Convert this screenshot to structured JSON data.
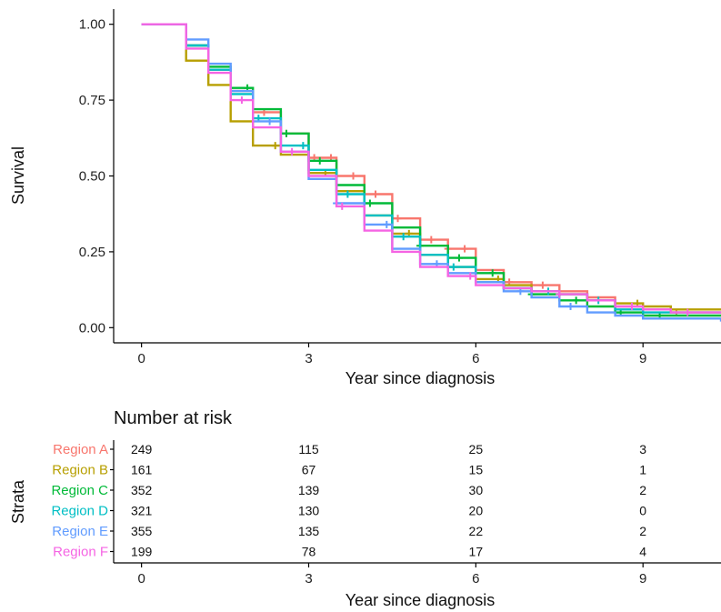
{
  "chart_data": [
    {
      "type": "line",
      "subtype": "kaplan-meier-step",
      "xlabel": "Year since diagnosis",
      "ylabel": "Survival",
      "xlim": [
        -0.5,
        10.4
      ],
      "ylim": [
        -0.05,
        1.05
      ],
      "x_ticks": [
        0,
        3,
        6,
        9
      ],
      "x_tick_labels": [
        "0",
        "3",
        "6",
        "9"
      ],
      "y_ticks": [
        0.0,
        0.25,
        0.5,
        0.75,
        1.0
      ],
      "y_tick_labels": [
        "0.00",
        "0.25",
        "0.50",
        "0.75",
        "1.00"
      ],
      "grid": false,
      "legend": "none",
      "series": [
        {
          "name": "Region A",
          "color": "#F8766D",
          "points": [
            [
              0,
              1
            ],
            [
              0.55,
              1
            ],
            [
              0.8,
              0.93
            ],
            [
              1.2,
              0.85
            ],
            [
              1.6,
              0.78
            ],
            [
              2,
              0.71
            ],
            [
              2.5,
              0.64
            ],
            [
              3,
              0.56
            ],
            [
              3.5,
              0.5
            ],
            [
              4,
              0.44
            ],
            [
              4.5,
              0.36
            ],
            [
              5,
              0.29
            ],
            [
              5.5,
              0.26
            ],
            [
              6,
              0.19
            ],
            [
              6.5,
              0.15
            ],
            [
              7,
              0.14
            ],
            [
              7.5,
              0.12
            ],
            [
              8,
              0.1
            ],
            [
              8.5,
              0.07
            ],
            [
              9,
              0.06
            ],
            [
              9.5,
              0.05
            ],
            [
              10.4,
              0.05
            ]
          ],
          "censor_x": [
            2.2,
            2.6,
            3.1,
            3.4,
            3.8,
            4.2,
            4.6,
            5.2,
            5.5,
            5.8,
            6.6,
            7.2,
            8.5,
            9.6
          ]
        },
        {
          "name": "Region B",
          "color": "#B79F00",
          "points": [
            [
              0,
              1
            ],
            [
              0.55,
              1
            ],
            [
              0.8,
              0.88
            ],
            [
              1.2,
              0.8
            ],
            [
              1.6,
              0.68
            ],
            [
              2,
              0.6
            ],
            [
              2.5,
              0.57
            ],
            [
              3,
              0.51
            ],
            [
              3.5,
              0.45
            ],
            [
              4,
              0.37
            ],
            [
              4.5,
              0.31
            ],
            [
              5,
              0.24
            ],
            [
              5.5,
              0.2
            ],
            [
              6,
              0.16
            ],
            [
              6.5,
              0.14
            ],
            [
              7,
              0.12
            ],
            [
              7.5,
              0.11
            ],
            [
              8,
              0.09
            ],
            [
              8.5,
              0.08
            ],
            [
              9,
              0.07
            ],
            [
              9.5,
              0.06
            ],
            [
              10.4,
              0.06
            ]
          ],
          "censor_x": [
            2.4,
            3.3,
            4.8,
            6.4,
            8.9
          ]
        },
        {
          "name": "Region C",
          "color": "#00BA38",
          "points": [
            [
              0,
              1
            ],
            [
              0.55,
              1
            ],
            [
              0.8,
              0.93
            ],
            [
              1.2,
              0.86
            ],
            [
              1.6,
              0.79
            ],
            [
              2,
              0.72
            ],
            [
              2.5,
              0.64
            ],
            [
              3,
              0.55
            ],
            [
              3.5,
              0.47
            ],
            [
              4,
              0.41
            ],
            [
              4.5,
              0.33
            ],
            [
              5,
              0.27
            ],
            [
              5.5,
              0.23
            ],
            [
              6,
              0.18
            ],
            [
              6.5,
              0.13
            ],
            [
              7,
              0.11
            ],
            [
              7.5,
              0.09
            ],
            [
              8,
              0.07
            ],
            [
              8.5,
              0.05
            ],
            [
              9,
              0.04
            ],
            [
              9.5,
              0.04
            ],
            [
              10.4,
              0.04
            ]
          ],
          "censor_x": [
            1.9,
            2.6,
            3.2,
            4.1,
            5.0,
            5.7,
            6.3,
            7.0,
            7.8,
            8.6,
            9.3
          ]
        },
        {
          "name": "Region D",
          "color": "#00BFC4",
          "points": [
            [
              0,
              1
            ],
            [
              0.55,
              1
            ],
            [
              0.8,
              0.93
            ],
            [
              1.2,
              0.85
            ],
            [
              1.6,
              0.77
            ],
            [
              2,
              0.69
            ],
            [
              2.5,
              0.6
            ],
            [
              3,
              0.52
            ],
            [
              3.5,
              0.44
            ],
            [
              4,
              0.37
            ],
            [
              4.5,
              0.3
            ],
            [
              5,
              0.24
            ],
            [
              5.5,
              0.2
            ],
            [
              6,
              0.15
            ],
            [
              6.5,
              0.13
            ],
            [
              7,
              0.12
            ],
            [
              7.5,
              0.11
            ],
            [
              8,
              0.09
            ],
            [
              8.5,
              0.06
            ],
            [
              9,
              0.05
            ],
            [
              9.5,
              0.05
            ],
            [
              10.4,
              0.05
            ]
          ],
          "censor_x": [
            2.1,
            2.9,
            3.7,
            4.7,
            5.6,
            7.3,
            8.2
          ]
        },
        {
          "name": "Region E",
          "color": "#619CFF",
          "points": [
            [
              0,
              1
            ],
            [
              0.55,
              1
            ],
            [
              0.8,
              0.95
            ],
            [
              1.2,
              0.87
            ],
            [
              1.6,
              0.78
            ],
            [
              2,
              0.68
            ],
            [
              2.5,
              0.58
            ],
            [
              3,
              0.49
            ],
            [
              3.5,
              0.41
            ],
            [
              4,
              0.34
            ],
            [
              4.5,
              0.26
            ],
            [
              5,
              0.21
            ],
            [
              5.5,
              0.18
            ],
            [
              6,
              0.15
            ],
            [
              6.5,
              0.12
            ],
            [
              7,
              0.1
            ],
            [
              7.5,
              0.07
            ],
            [
              8,
              0.05
            ],
            [
              8.5,
              0.04
            ],
            [
              9,
              0.03
            ],
            [
              9.5,
              0.03
            ],
            [
              10.4,
              0.02
            ]
          ],
          "censor_x": [
            2.3,
            3.5,
            4.4,
            5.3,
            6.8,
            7.7
          ]
        },
        {
          "name": "Region F",
          "color": "#F564E3",
          "points": [
            [
              0,
              1
            ],
            [
              0.55,
              1
            ],
            [
              0.8,
              0.92
            ],
            [
              1.2,
              0.84
            ],
            [
              1.6,
              0.75
            ],
            [
              2,
              0.66
            ],
            [
              2.5,
              0.58
            ],
            [
              3,
              0.5
            ],
            [
              3.5,
              0.4
            ],
            [
              4,
              0.32
            ],
            [
              4.5,
              0.25
            ],
            [
              5,
              0.2
            ],
            [
              5.5,
              0.17
            ],
            [
              6,
              0.14
            ],
            [
              6.5,
              0.13
            ],
            [
              7,
              0.12
            ],
            [
              7.5,
              0.11
            ],
            [
              8,
              0.09
            ],
            [
              8.5,
              0.07
            ],
            [
              9,
              0.06
            ],
            [
              9.5,
              0.05
            ],
            [
              10.4,
              0.05
            ]
          ],
          "censor_x": [
            1.8,
            2.7,
            3.6,
            5.9,
            7.5,
            8.8,
            9.8
          ]
        }
      ]
    },
    {
      "type": "table",
      "title": "Number at risk",
      "ylabel": "Strata",
      "xlabel": "Year since diagnosis",
      "x_ticks": [
        0,
        3,
        6,
        9
      ],
      "x_tick_labels": [
        "0",
        "3",
        "6",
        "9"
      ],
      "rows": [
        {
          "label": "Region A",
          "color": "#F8766D",
          "values": [
            "249",
            "115",
            "25",
            "3"
          ]
        },
        {
          "label": "Region B",
          "color": "#B79F00",
          "values": [
            "161",
            "67",
            "15",
            "1"
          ]
        },
        {
          "label": "Region C",
          "color": "#00BA38",
          "values": [
            "352",
            "139",
            "30",
            "2"
          ]
        },
        {
          "label": "Region D",
          "color": "#00BFC4",
          "values": [
            "321",
            "130",
            "20",
            "0"
          ]
        },
        {
          "label": "Region E",
          "color": "#619CFF",
          "values": [
            "355",
            "135",
            "22",
            "2"
          ]
        },
        {
          "label": "Region F",
          "color": "#F564E3",
          "values": [
            "199",
            "78",
            "17",
            "4"
          ]
        }
      ]
    }
  ]
}
